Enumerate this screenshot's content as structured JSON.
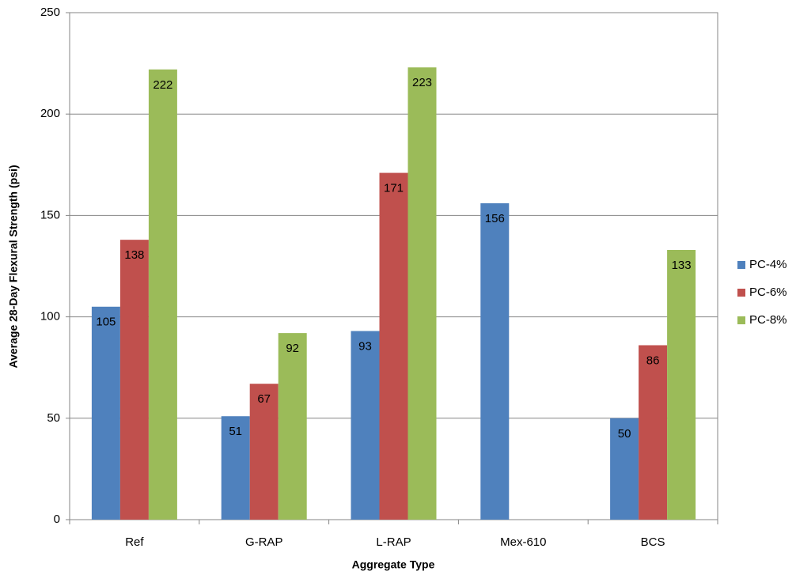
{
  "chart_data": {
    "type": "bar",
    "x_label": "Aggregate Type",
    "y_label": "Average 28-Day Flexural Strength (psi)",
    "categories": [
      "Ref",
      "G-RAP",
      "L-RAP",
      "Mex-610",
      "BCS"
    ],
    "series": [
      {
        "name": "PC-4%",
        "color": "#4f81bd",
        "values": [
          105,
          51,
          93,
          156,
          50
        ]
      },
      {
        "name": "PC-6%",
        "color": "#c0504d",
        "values": [
          138,
          67,
          171,
          null,
          86
        ]
      },
      {
        "name": "PC-8%",
        "color": "#9bbb59",
        "values": [
          222,
          92,
          223,
          null,
          133
        ]
      }
    ],
    "ylim": [
      0,
      250
    ],
    "yticks": [
      0,
      50,
      100,
      150,
      200,
      250
    ],
    "grid": true,
    "legend": "right"
  }
}
